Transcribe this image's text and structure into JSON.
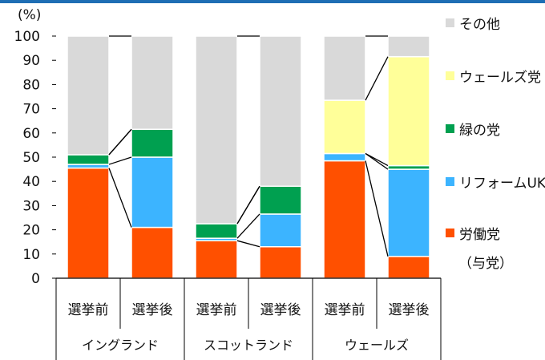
{
  "chart_data": {
    "type": "bar",
    "stacked": true,
    "ylabel": "(%)",
    "ylim": [
      0,
      100
    ],
    "yticks": [
      0,
      10,
      20,
      30,
      40,
      50,
      60,
      70,
      80,
      90,
      100
    ],
    "categories": [
      {
        "label": "選挙前",
        "group": "イングランド"
      },
      {
        "label": "選挙後",
        "group": "イングランド"
      },
      {
        "label": "選挙前",
        "group": "スコットランド"
      },
      {
        "label": "選挙後",
        "group": "スコットランド"
      },
      {
        "label": "選挙前",
        "group": "ウェールズ"
      },
      {
        "label": "選挙後",
        "group": "ウェールズ"
      }
    ],
    "groups": [
      "イングランド",
      "スコットランド",
      "ウェールズ"
    ],
    "series": [
      {
        "name": "労働党",
        "color": "#ff5000",
        "values": [
          45.5,
          21,
          15.5,
          13,
          48.5,
          9
        ]
      },
      {
        "name": "リフォームUK",
        "color": "#3cb4ff",
        "values": [
          1.5,
          29,
          1,
          13.5,
          3,
          36
        ]
      },
      {
        "name": "緑の党",
        "color": "#00a050",
        "values": [
          4,
          11.5,
          6,
          11.5,
          0,
          1.5
        ]
      },
      {
        "name": "ウェールズ党",
        "color": "#ffff99",
        "values": [
          0,
          0,
          0,
          0,
          22,
          45
        ]
      },
      {
        "name": "その他",
        "color": "#d9d9d9",
        "values": [
          49,
          38.5,
          77.5,
          62,
          26.5,
          8.5
        ]
      }
    ],
    "legend_position": "right",
    "legend_note": "（与党）",
    "grid": false
  },
  "theme": {
    "topbar": "#1e6eb4",
    "axis": "#000000",
    "connector": "#000000"
  }
}
